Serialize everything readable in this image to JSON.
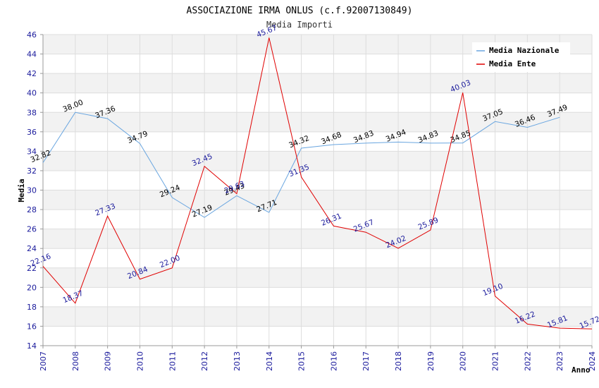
{
  "chart_data": {
    "type": "line",
    "title": "ASSOCIAZIONE IRMA ONLUS (c.f.92007130849)",
    "subtitle": "Media Importi",
    "xlabel": "Anno",
    "ylabel": "Media",
    "ylim": [
      14,
      46
    ],
    "ytick_step": 2,
    "grid": true,
    "legend_position": "top-right",
    "x": [
      "2007",
      "2008",
      "2009",
      "2010",
      "2011",
      "2012",
      "2013",
      "2014",
      "2015",
      "2016",
      "2017",
      "2018",
      "2019",
      "2020",
      "2021",
      "2022",
      "2023",
      "2024"
    ],
    "series": [
      {
        "name": "Media Nazionale",
        "color": "#6aa6e0",
        "label_color": "#000000",
        "values": [
          32.82,
          38.0,
          37.36,
          34.79,
          29.24,
          27.19,
          29.43,
          27.71,
          34.32,
          34.68,
          34.83,
          34.94,
          34.83,
          34.85,
          37.05,
          36.46,
          37.49,
          null
        ]
      },
      {
        "name": "Media Ente",
        "color": "#e00000",
        "label_color": "#1a1a9c",
        "values": [
          22.16,
          18.37,
          27.33,
          20.84,
          22.0,
          32.45,
          29.63,
          45.67,
          31.35,
          26.31,
          25.67,
          24.02,
          25.89,
          40.03,
          19.1,
          16.22,
          15.81,
          15.72
        ]
      }
    ]
  }
}
